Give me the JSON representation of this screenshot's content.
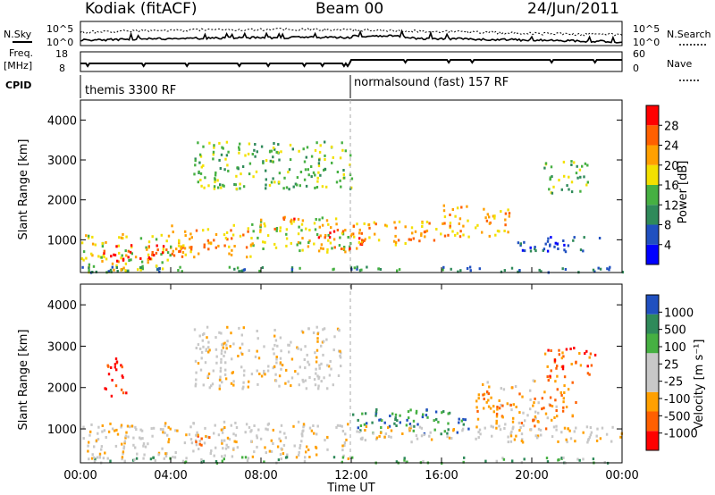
{
  "header": {
    "station": "Kodiak (fitACF)",
    "beam": "Beam 00",
    "date": "24/Jun/2011"
  },
  "top_panels": {
    "nsky_label": "N.Sky",
    "nsky_ticks": [
      "10^5",
      "10^0"
    ],
    "nsearch_label": "N.Search",
    "nsearch_ticks": [
      "10^5",
      "10^0"
    ],
    "freq_label": "Freq.",
    "freq_unit": "[MHz]",
    "freq_ticks": [
      "18",
      "8"
    ],
    "nave_label": "Nave",
    "nave_ticks": [
      "60",
      "0"
    ],
    "cpid_label": "CPID",
    "cpid_segments": [
      "themis 3300 RF",
      "normalsound (fast) 157 RF"
    ]
  },
  "colors": {
    "power_scale": [
      "#0000ff",
      "#2050c0",
      "#2f8a5a",
      "#46b042",
      "#f3e000",
      "#ffa000",
      "#ff6000",
      "#ff0000"
    ],
    "velocity_scale": [
      "#ff0000",
      "#ff6000",
      "#ffa000",
      "#c8c8c8",
      "#c8c8c8",
      "#46b042",
      "#2f8a5a",
      "#2050c0"
    ]
  },
  "chart_data": [
    {
      "type": "heatmap",
      "name": "power",
      "ylabel": "Slant Range [km]",
      "yticks": [
        "1000",
        "2000",
        "3000",
        "4000"
      ],
      "xticks": [
        "00:00",
        "04:00",
        "08:00",
        "12:00",
        "16:00",
        "20:00",
        "00:00"
      ],
      "colorbar_label": "Power [dB]",
      "colorbar_ticks": [
        "4",
        "8",
        "12",
        "16",
        "20",
        "24",
        "28"
      ],
      "xlim": [
        0,
        24
      ],
      "ylim": [
        180,
        4500
      ],
      "bands": [
        {
          "t0": 0.0,
          "t1": 4.0,
          "r0": 200,
          "r1": 1200,
          "level": 4
        },
        {
          "t0": 1.0,
          "t1": 4.5,
          "r0": 500,
          "r1": 900,
          "level": 7
        },
        {
          "t0": 4.0,
          "t1": 7.5,
          "r0": 600,
          "r1": 1400,
          "level": 5
        },
        {
          "t0": 7.5,
          "t1": 12.0,
          "r0": 700,
          "r1": 1600,
          "level": 4
        },
        {
          "t0": 8.5,
          "t1": 9.5,
          "r0": 1300,
          "r1": 1600,
          "level": 6
        },
        {
          "t0": 10.5,
          "t1": 12.5,
          "r0": 800,
          "r1": 1300,
          "level": 6
        },
        {
          "t0": 12.0,
          "t1": 16.0,
          "r0": 900,
          "r1": 1500,
          "level": 5
        },
        {
          "t0": 16.0,
          "t1": 19.0,
          "r0": 1100,
          "r1": 1900,
          "level": 5
        },
        {
          "t0": 19.0,
          "t1": 23.0,
          "r0": 700,
          "r1": 1100,
          "level": 1
        },
        {
          "t0": 5.0,
          "t1": 12.0,
          "r0": 2300,
          "r1": 3500,
          "level": 3
        },
        {
          "t0": 20.5,
          "t1": 22.5,
          "r0": 2200,
          "r1": 3000,
          "level": 3
        },
        {
          "t0": 0.0,
          "t1": 24.0,
          "r0": 200,
          "r1": 350,
          "level": 2
        }
      ]
    },
    {
      "type": "heatmap",
      "name": "velocity",
      "ylabel": "Slant Range [km]",
      "yticks": [
        "1000",
        "2000",
        "3000",
        "4000"
      ],
      "xticks": [
        "00:00",
        "04:00",
        "08:00",
        "12:00",
        "16:00",
        "20:00",
        "00:00"
      ],
      "xlabel": "Time UT",
      "colorbar_label": "Velocity [m s⁻¹]",
      "colorbar_ticks": [
        "-1000",
        "-500",
        "-100",
        "-25",
        "25",
        "100",
        "500",
        "1000"
      ],
      "xlim": [
        0,
        24
      ],
      "ylim": [
        180,
        4500
      ],
      "bands": [
        {
          "t0": 0.0,
          "t1": 12.0,
          "r0": 300,
          "r1": 1200,
          "level": 3
        },
        {
          "t0": 1.0,
          "t1": 2.0,
          "r0": 1800,
          "r1": 2800,
          "level": 0
        },
        {
          "t0": 5.0,
          "t1": 6.0,
          "r0": 600,
          "r1": 900,
          "level": 1
        },
        {
          "t0": 5.0,
          "t1": 11.5,
          "r0": 2000,
          "r1": 3500,
          "level": 3
        },
        {
          "t0": 12.0,
          "t1": 17.5,
          "r0": 900,
          "r1": 1500,
          "level": 6
        },
        {
          "t0": 17.5,
          "t1": 22.0,
          "r0": 1000,
          "r1": 2200,
          "level": 2
        },
        {
          "t0": 20.5,
          "t1": 22.8,
          "r0": 2200,
          "r1": 3000,
          "level": 1
        },
        {
          "t0": 12.0,
          "t1": 24.0,
          "r0": 700,
          "r1": 1100,
          "level": 3
        },
        {
          "t0": 0.0,
          "t1": 24.0,
          "r0": 200,
          "r1": 350,
          "level": 5
        }
      ]
    }
  ]
}
